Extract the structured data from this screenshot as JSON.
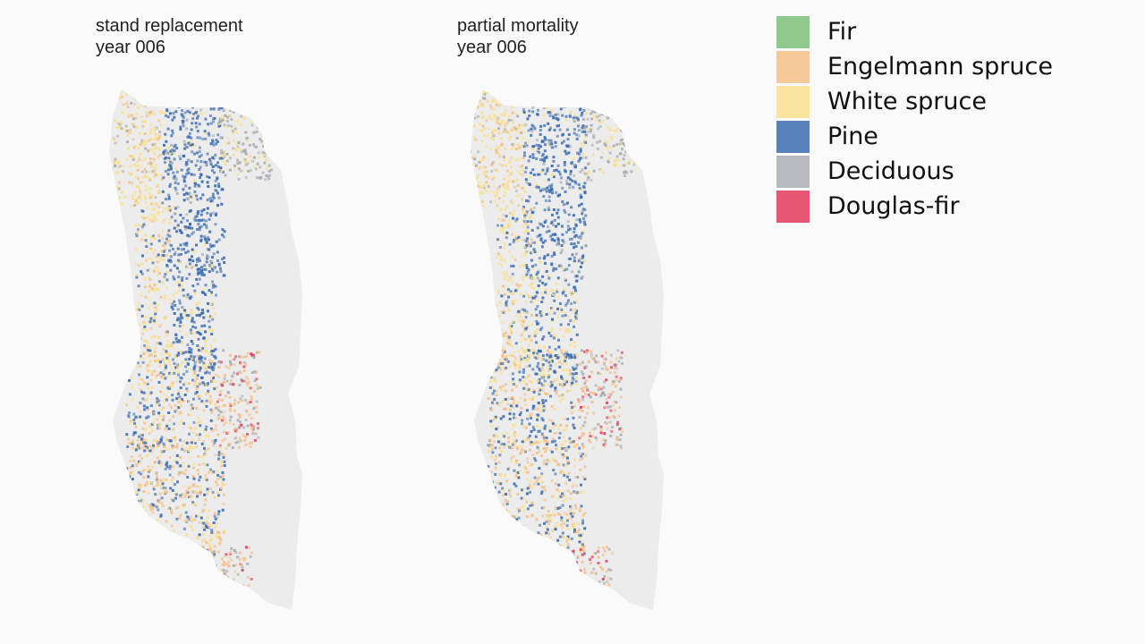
{
  "panels": [
    {
      "id": "left",
      "title": "stand replacement",
      "year_label": "year 006"
    },
    {
      "id": "right",
      "title": "partial mortality",
      "year_label": "year 006"
    }
  ],
  "legend": [
    {
      "label": "Fir",
      "color": "#7cbf7a"
    },
    {
      "label": "Engelmann spruce",
      "color": "#f4c08a"
    },
    {
      "label": "White spruce",
      "color": "#f9df8d"
    },
    {
      "label": "Pine",
      "color": "#3b6cb0"
    },
    {
      "label": "Deciduous",
      "color": "#a9adb1"
    },
    {
      "label": "Douglas-fir",
      "color": "#e23a5a"
    }
  ],
  "colors": {
    "background": "#fafafa",
    "region_fill": "#ececec"
  }
}
